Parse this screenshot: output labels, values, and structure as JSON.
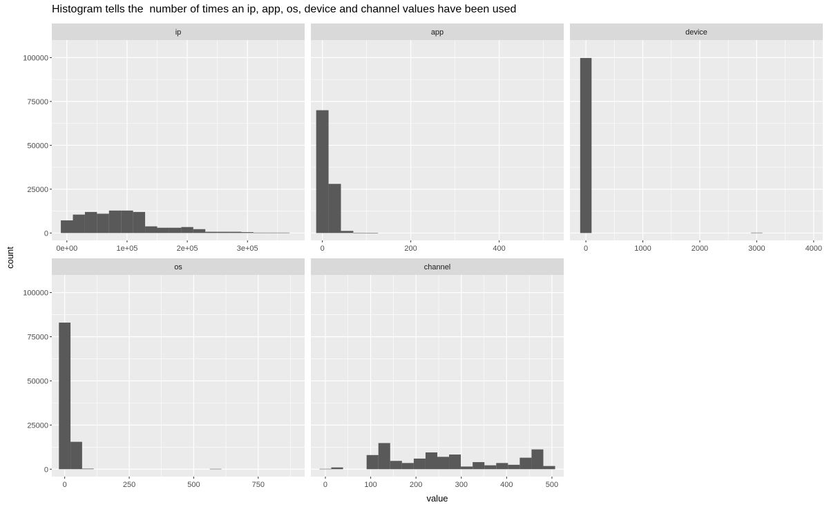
{
  "title": "Histogram tells the  number of times an ip, app, os, device and channel values have been used",
  "colors": {
    "panel_background": "#ebebeb",
    "strip_background": "#d9d9d9",
    "grid": "#ffffff",
    "bar_fill": "#595959",
    "tick_text": "#4d4d4d"
  },
  "chart_data": {
    "type": "bar",
    "subtype": "faceted histogram",
    "xlabel": "value",
    "ylabel": "count",
    "y_ticks": [
      "0",
      "25000",
      "50000",
      "75000",
      "100000"
    ],
    "ylim": [
      -4200,
      110000
    ],
    "grid": true,
    "facets": [
      {
        "name": "ip",
        "xlim": [
          -25000,
          395000
        ],
        "x_ticks": [
          0,
          100000,
          200000,
          300000
        ],
        "x_tick_labels": [
          "0e+00",
          "1e+05",
          "2e+05",
          "3e+05"
        ],
        "bin_width": 20000,
        "bins": [
          {
            "center": 0,
            "count": 7200
          },
          {
            "center": 20000,
            "count": 10500
          },
          {
            "center": 40000,
            "count": 12000
          },
          {
            "center": 60000,
            "count": 11000
          },
          {
            "center": 80000,
            "count": 12800
          },
          {
            "center": 100000,
            "count": 12800
          },
          {
            "center": 120000,
            "count": 12000
          },
          {
            "center": 140000,
            "count": 3800
          },
          {
            "center": 160000,
            "count": 3000
          },
          {
            "center": 180000,
            "count": 3000
          },
          {
            "center": 200000,
            "count": 3400
          },
          {
            "center": 220000,
            "count": 2200
          },
          {
            "center": 240000,
            "count": 700
          },
          {
            "center": 260000,
            "count": 700
          },
          {
            "center": 280000,
            "count": 700
          },
          {
            "center": 300000,
            "count": 500
          },
          {
            "center": 320000,
            "count": 200
          },
          {
            "center": 340000,
            "count": 200
          },
          {
            "center": 360000,
            "count": 200
          }
        ]
      },
      {
        "name": "app",
        "xlim": [
          -26,
          546
        ],
        "x_ticks": [
          0,
          200,
          400
        ],
        "x_tick_labels": [
          "0",
          "200",
          "400"
        ],
        "bin_width": 28,
        "bins": [
          {
            "center": 0,
            "count": 70000
          },
          {
            "center": 28,
            "count": 28000
          },
          {
            "center": 56,
            "count": 1200
          },
          {
            "center": 84,
            "count": 150
          },
          {
            "center": 112,
            "count": 50
          }
        ]
      },
      {
        "name": "device",
        "xlim": [
          -280,
          4160
        ],
        "x_ticks": [
          0,
          1000,
          2000,
          3000,
          4000
        ],
        "x_tick_labels": [
          "0",
          "1000",
          "2000",
          "3000",
          "4000"
        ],
        "bin_width": 200,
        "bins": [
          {
            "center": 0,
            "count": 99800
          },
          {
            "center": 3000,
            "count": 200
          }
        ]
      },
      {
        "name": "os",
        "xlim": [
          -50,
          930
        ],
        "x_ticks": [
          0,
          250,
          500,
          750
        ],
        "x_tick_labels": [
          "0",
          "250",
          "500",
          "750"
        ],
        "bin_width": 45,
        "bins": [
          {
            "center": 0,
            "count": 83000
          },
          {
            "center": 45,
            "count": 15500
          },
          {
            "center": 90,
            "count": 300
          },
          {
            "center": 585,
            "count": 200
          }
        ]
      },
      {
        "name": "channel",
        "xlim": [
          -32,
          526
        ],
        "x_ticks": [
          0,
          100,
          200,
          300,
          400,
          500
        ],
        "x_tick_labels": [
          "0",
          "100",
          "200",
          "300",
          "400",
          "500"
        ],
        "bin_width": 26,
        "bins": [
          {
            "center": 0,
            "count": 200
          },
          {
            "center": 26,
            "count": 1000
          },
          {
            "center": 104,
            "count": 8000
          },
          {
            "center": 130,
            "count": 14800
          },
          {
            "center": 156,
            "count": 4700
          },
          {
            "center": 182,
            "count": 3500
          },
          {
            "center": 208,
            "count": 6000
          },
          {
            "center": 234,
            "count": 9500
          },
          {
            "center": 260,
            "count": 7000
          },
          {
            "center": 286,
            "count": 8300
          },
          {
            "center": 312,
            "count": 1500
          },
          {
            "center": 338,
            "count": 4000
          },
          {
            "center": 364,
            "count": 2200
          },
          {
            "center": 390,
            "count": 3500
          },
          {
            "center": 416,
            "count": 2500
          },
          {
            "center": 442,
            "count": 6500
          },
          {
            "center": 468,
            "count": 11200
          },
          {
            "center": 494,
            "count": 1800
          }
        ]
      }
    ]
  }
}
